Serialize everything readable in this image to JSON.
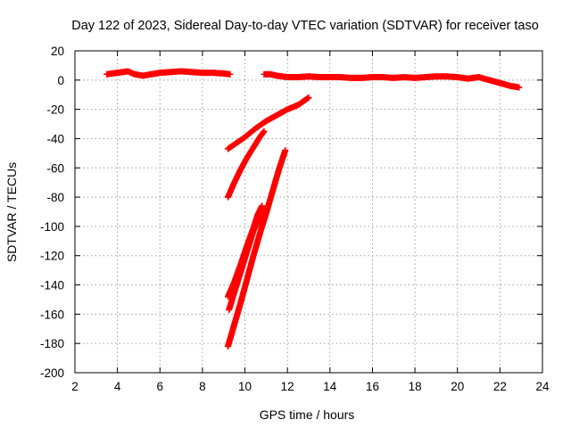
{
  "chart_data": {
    "type": "scatter",
    "title": "Day 122 of 2023, Sidereal Day-to-day VTEC variation (SDTVAR) for receiver taso",
    "xlabel": "GPS time / hours",
    "ylabel": "SDTVAR / TECUs",
    "xlim": [
      2,
      24
    ],
    "ylim": [
      -200,
      20
    ],
    "x_ticks": [
      2,
      4,
      6,
      8,
      10,
      12,
      14,
      16,
      18,
      20,
      22,
      24
    ],
    "y_ticks": [
      20,
      0,
      -20,
      -40,
      -60,
      -80,
      -100,
      -120,
      -140,
      -160,
      -180,
      -200
    ],
    "x_tick_labels": [
      "2",
      "4",
      "6",
      "8",
      "10",
      "12",
      "14",
      "16",
      "18",
      "20",
      "22",
      "24"
    ],
    "y_tick_labels": [
      "20",
      "0",
      "-20",
      "-40",
      "-60",
      "-80",
      "-100",
      "-120",
      "-140",
      "-160",
      "-180",
      "-200"
    ],
    "grid": true,
    "marker": "+",
    "color": "#ff0000",
    "series": [
      {
        "points": [
          [
            3.5,
            4
          ],
          [
            4.0,
            5
          ],
          [
            4.5,
            6
          ],
          [
            4.8,
            4
          ],
          [
            5.2,
            3
          ],
          [
            5.6,
            4
          ],
          [
            6.0,
            5
          ],
          [
            6.5,
            5.5
          ],
          [
            7.0,
            6
          ],
          [
            7.5,
            5.5
          ],
          [
            8.0,
            5
          ],
          [
            8.5,
            5
          ],
          [
            9.0,
            4.5
          ],
          [
            9.3,
            4
          ]
        ]
      },
      {
        "points": [
          [
            10.9,
            4
          ],
          [
            11.2,
            4
          ],
          [
            11.5,
            3
          ],
          [
            12.0,
            2
          ],
          [
            12.5,
            2
          ],
          [
            13.0,
            2.5
          ],
          [
            13.5,
            2
          ],
          [
            14.0,
            2
          ],
          [
            14.5,
            2
          ],
          [
            15.0,
            1.5
          ],
          [
            15.5,
            1.5
          ],
          [
            16.0,
            2
          ],
          [
            16.5,
            2
          ],
          [
            17.0,
            1.5
          ],
          [
            17.5,
            2
          ],
          [
            18.0,
            1.5
          ],
          [
            18.5,
            2
          ],
          [
            19.0,
            2.5
          ],
          [
            19.5,
            2.5
          ],
          [
            20.0,
            2
          ],
          [
            20.5,
            1
          ],
          [
            21.0,
            2
          ],
          [
            21.5,
            0
          ],
          [
            22.0,
            -2
          ],
          [
            22.5,
            -4
          ],
          [
            22.9,
            -5
          ]
        ]
      },
      {
        "points": [
          [
            9.2,
            -47
          ],
          [
            9.6,
            -43
          ],
          [
            10.0,
            -39
          ],
          [
            10.5,
            -33
          ],
          [
            11.0,
            -28
          ],
          [
            11.5,
            -24
          ],
          [
            12.0,
            -20
          ],
          [
            12.5,
            -17
          ],
          [
            13.0,
            -12
          ]
        ]
      },
      {
        "points": [
          [
            9.2,
            -80
          ],
          [
            9.5,
            -70
          ],
          [
            9.8,
            -61
          ],
          [
            10.1,
            -53
          ],
          [
            10.4,
            -46
          ],
          [
            10.7,
            -39
          ],
          [
            10.9,
            -35
          ]
        ]
      },
      {
        "points": [
          [
            9.2,
            -148
          ],
          [
            9.5,
            -138
          ],
          [
            9.8,
            -126
          ],
          [
            10.1,
            -113
          ],
          [
            10.4,
            -101
          ],
          [
            10.6,
            -92
          ],
          [
            10.8,
            -86
          ]
        ]
      },
      {
        "points": [
          [
            9.25,
            -157
          ],
          [
            9.5,
            -145
          ],
          [
            9.8,
            -131
          ],
          [
            10.1,
            -117
          ],
          [
            10.4,
            -103
          ],
          [
            10.7,
            -94
          ],
          [
            11.0,
            -88
          ]
        ]
      },
      {
        "points": [
          [
            9.2,
            -182
          ],
          [
            9.5,
            -167
          ],
          [
            9.8,
            -152
          ],
          [
            10.1,
            -136
          ],
          [
            10.4,
            -120
          ],
          [
            10.7,
            -105
          ],
          [
            11.0,
            -91
          ],
          [
            11.3,
            -76
          ],
          [
            11.6,
            -61
          ],
          [
            11.9,
            -48
          ]
        ]
      }
    ]
  }
}
